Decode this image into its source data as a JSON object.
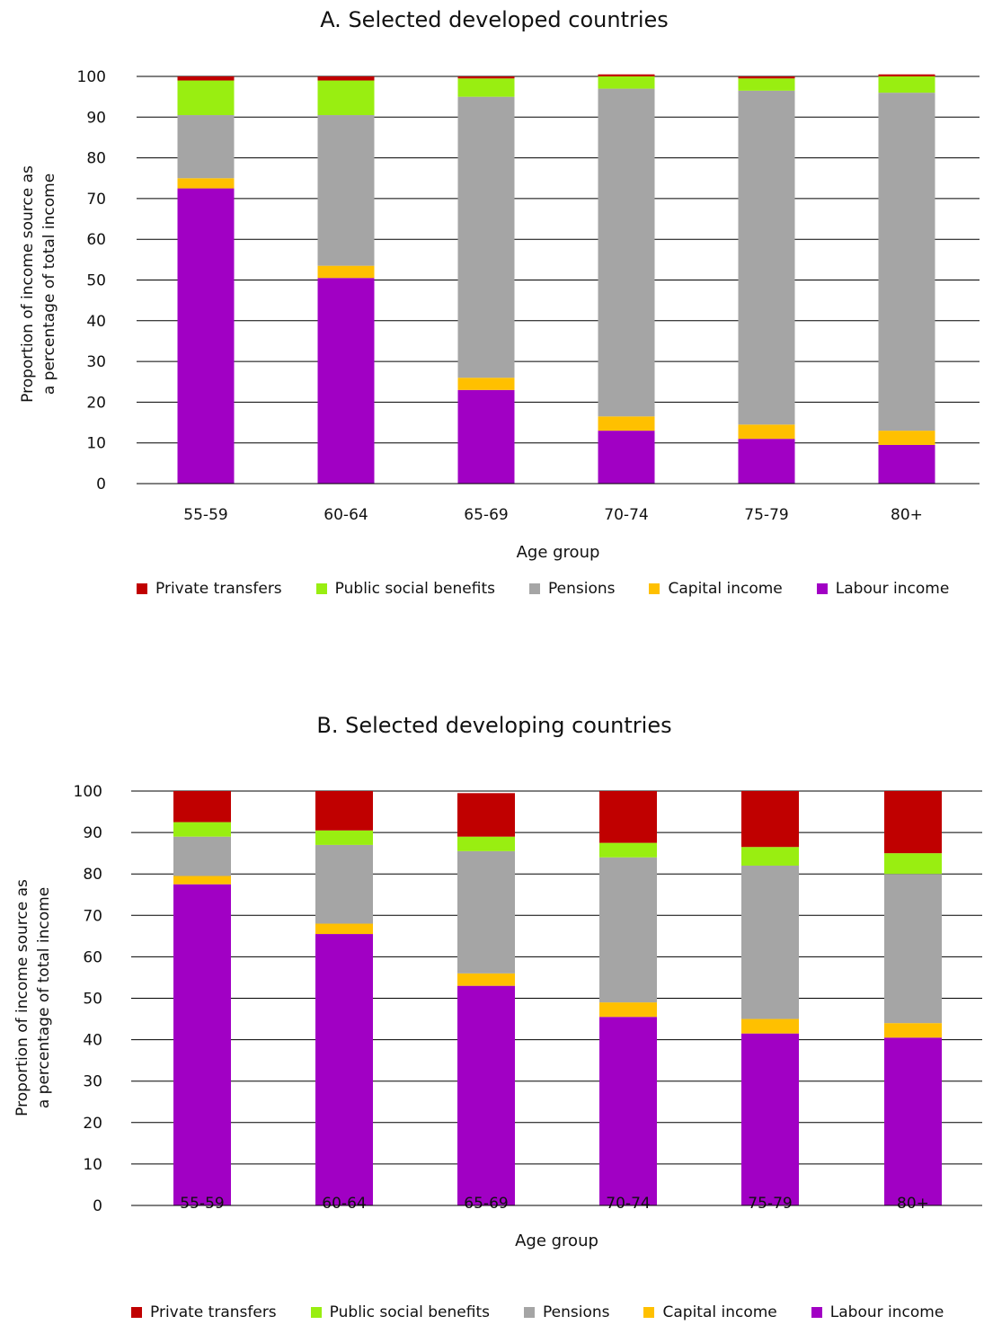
{
  "chart_data": [
    {
      "type": "bar",
      "stacked": true,
      "title": "A. Selected developed countries",
      "xlabel": "Age group",
      "ylabel": "Proportion of income source as a percentage of total income",
      "ylabel_lines": [
        "Proportion of income source as",
        "a percentage of total income"
      ],
      "ylim": [
        0,
        100
      ],
      "yticks": [
        0,
        10,
        20,
        30,
        40,
        50,
        60,
        70,
        80,
        90,
        100
      ],
      "grid": true,
      "legend_position": "bottom",
      "categories": [
        "55-59",
        "60-64",
        "65-69",
        "70-74",
        "75-79",
        "80+"
      ],
      "series": [
        {
          "name": "Labour income",
          "color": "#A100C4",
          "values": [
            72.5,
            50.5,
            23.0,
            13.0,
            11.0,
            9.5
          ]
        },
        {
          "name": "Capital income",
          "color": "#FFC000",
          "values": [
            2.5,
            3.0,
            3.0,
            3.5,
            3.5,
            3.5
          ]
        },
        {
          "name": "Pensions",
          "color": "#A5A5A5",
          "values": [
            15.5,
            37.0,
            69.0,
            80.5,
            82.0,
            83.0
          ]
        },
        {
          "name": "Public social benefits",
          "color": "#99EE11",
          "values": [
            8.5,
            8.5,
            4.5,
            3.0,
            3.0,
            4.0
          ]
        },
        {
          "name": "Private transfers",
          "color": "#C00000",
          "values": [
            1.0,
            1.0,
            0.5,
            0.5,
            0.5,
            0.5
          ]
        }
      ],
      "legend_order": [
        "Private transfers",
        "Public social benefits",
        "Pensions",
        "Capital income",
        "Labour income"
      ]
    },
    {
      "type": "bar",
      "stacked": true,
      "title": "B. Selected developing countries",
      "xlabel": "Age group",
      "ylabel": "Proportion of income source as a percentage of total income",
      "ylabel_lines": [
        "Proportion of income source as",
        "a percentage of total income"
      ],
      "ylim": [
        0,
        100
      ],
      "yticks": [
        0,
        10,
        20,
        30,
        40,
        50,
        60,
        70,
        80,
        90,
        100
      ],
      "grid": true,
      "legend_position": "bottom",
      "categories": [
        "55-59",
        "60-64",
        "65-69",
        "70-74",
        "75-79",
        "80+"
      ],
      "series": [
        {
          "name": "Labour income",
          "color": "#A100C4",
          "values": [
            77.5,
            65.5,
            53.0,
            45.5,
            41.5,
            40.5
          ]
        },
        {
          "name": "Capital income",
          "color": "#FFC000",
          "values": [
            2.0,
            2.5,
            3.0,
            3.5,
            3.5,
            3.5
          ]
        },
        {
          "name": "Pensions",
          "color": "#A5A5A5",
          "values": [
            9.5,
            19.0,
            29.5,
            35.0,
            37.0,
            36.0
          ]
        },
        {
          "name": "Public social benefits",
          "color": "#99EE11",
          "values": [
            3.5,
            3.5,
            3.5,
            3.5,
            4.5,
            5.0
          ]
        },
        {
          "name": "Private transfers",
          "color": "#C00000",
          "values": [
            7.5,
            9.5,
            10.5,
            12.5,
            13.5,
            15.0
          ]
        }
      ],
      "legend_order": [
        "Private transfers",
        "Public social benefits",
        "Pensions",
        "Capital income",
        "Labour income"
      ]
    }
  ]
}
